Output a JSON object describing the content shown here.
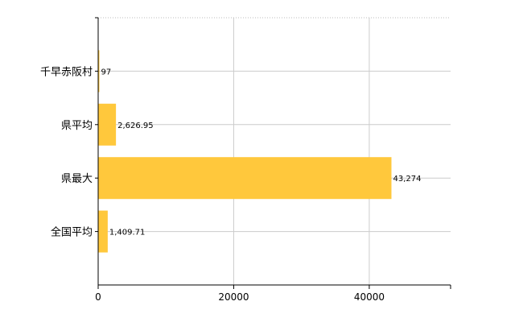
{
  "chart_data": {
    "type": "bar",
    "orientation": "horizontal",
    "categories": [
      "千早赤阪村",
      "県平均",
      "県最大",
      "全国平均"
    ],
    "values": [
      97,
      2626.95,
      43274,
      1409.71
    ],
    "data_labels": [
      "97",
      "2,626.95",
      "43,274",
      "1,409.71"
    ],
    "xlim": [
      0,
      52000
    ],
    "x_ticks": [
      0,
      20000,
      40000
    ],
    "x_tick_labels": [
      "0",
      "20000",
      "40000"
    ],
    "grid": true,
    "legend": "none",
    "bar_color": "#FFC83C"
  }
}
